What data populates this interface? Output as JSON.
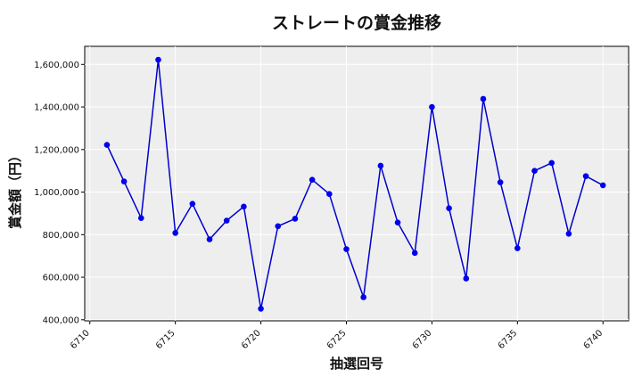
{
  "chart_data": {
    "type": "line",
    "title": "ストレートの賞金推移",
    "xlabel": "抽選回号",
    "ylabel": "賞金額（円）",
    "xlim": [
      6709.7,
      6741.5
    ],
    "ylim": [
      395000,
      1685000
    ],
    "grid": true,
    "x_ticks": [
      6710,
      6715,
      6720,
      6725,
      6730,
      6735,
      6740
    ],
    "y_ticks": [
      400000,
      600000,
      800000,
      1000000,
      1200000,
      1400000,
      1600000
    ],
    "y_tick_labels": [
      "400,000",
      "600,000",
      "800,000",
      "1,000,000",
      "1,200,000",
      "1,400,000",
      "1,600,000"
    ],
    "line_color": "#0000cc",
    "marker_color": "#0000ee",
    "x": [
      6711,
      6712,
      6713,
      6714,
      6715,
      6716,
      6717,
      6718,
      6719,
      6720,
      6721,
      6722,
      6723,
      6724,
      6725,
      6726,
      6727,
      6728,
      6729,
      6730,
      6731,
      6732,
      6733,
      6734,
      6735,
      6736,
      6737,
      6738,
      6739,
      6740
    ],
    "values": [
      1222000,
      1050000,
      878000,
      1622000,
      808000,
      945000,
      778000,
      866000,
      932000,
      452000,
      840000,
      875000,
      1058000,
      991000,
      732000,
      506000,
      1124000,
      857000,
      714000,
      1400000,
      924000,
      594000,
      1438000,
      1046000,
      736000,
      1100000,
      1137000,
      804000,
      1075000,
      1032000
    ]
  }
}
